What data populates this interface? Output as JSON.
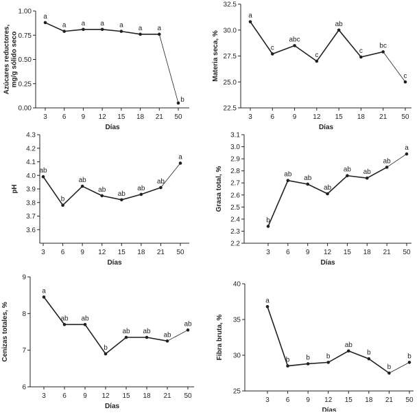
{
  "chart_data": [
    {
      "type": "line",
      "categories": [
        "3",
        "6",
        "9",
        "12",
        "15",
        "18",
        "21",
        "50"
      ],
      "values": [
        0.88,
        0.79,
        0.81,
        0.81,
        0.79,
        0.76,
        0.76,
        0.05
      ],
      "letters": [
        "a",
        "a",
        "a",
        "a",
        "a",
        "a",
        "a",
        "b"
      ],
      "xlabel": "Días",
      "ylabel": [
        "Azúcares reductores,",
        "mg/g sólido seco"
      ],
      "ylim": [
        0,
        1
      ],
      "yticks": [
        0,
        0.25,
        0.5,
        0.75,
        1
      ],
      "ytick_labels": [
        "0.00",
        "0.25",
        "0.50",
        "0.75",
        "1.00"
      ],
      "grid": false,
      "color": "#231f20"
    },
    {
      "type": "line",
      "categories": [
        "3",
        "6",
        "9",
        "12",
        "15",
        "18",
        "21",
        "50"
      ],
      "values": [
        30.8,
        27.7,
        28.5,
        27.0,
        30.0,
        27.4,
        27.9,
        25.0
      ],
      "letters": [
        "a",
        "c",
        "abc",
        "c",
        "ab",
        "c",
        "bc",
        "c"
      ],
      "xlabel": "Días",
      "ylabel": [
        "Materia seca, %"
      ],
      "ylim": [
        22.5,
        32.5
      ],
      "yticks": [
        22.5,
        25,
        27.5,
        30,
        32.5
      ],
      "ytick_labels": [
        "22.5",
        "25.0",
        "27.5",
        "30.0",
        "32.5"
      ],
      "grid": false,
      "color": "#231f20"
    },
    {
      "type": "line",
      "categories": [
        "3",
        "6",
        "9",
        "12",
        "15",
        "18",
        "21",
        "50"
      ],
      "values": [
        3.99,
        3.78,
        3.92,
        3.85,
        3.82,
        3.86,
        3.91,
        4.09
      ],
      "letters": [
        "ab",
        "b",
        "ab",
        "ab",
        "ab",
        "ab",
        "ab",
        "a"
      ],
      "xlabel": "Días",
      "ylabel": [
        "pH"
      ],
      "ylim": [
        3.5,
        4.3
      ],
      "yticks": [
        3.6,
        3.7,
        3.8,
        3.9,
        4.0,
        4.1,
        4.2,
        4.3
      ],
      "ytick_labels": [
        "3.6",
        "3.7",
        "3.8",
        "3.9",
        "4.0",
        "4.1",
        "4.2",
        "4.3"
      ],
      "grid": false,
      "color": "#231f20"
    },
    {
      "type": "line",
      "categories": [
        "3",
        "6",
        "9",
        "12",
        "15",
        "18",
        "21",
        "50"
      ],
      "values": [
        2.34,
        2.72,
        2.69,
        2.61,
        2.76,
        2.74,
        2.83,
        2.94
      ],
      "letters": [
        "b",
        "ab",
        "ab",
        "ab",
        "ab",
        "ab",
        "ab",
        "a"
      ],
      "xlabel": "Días",
      "ylabel": [
        "Grasa total, %"
      ],
      "ylim": [
        2.2,
        3.1
      ],
      "yticks": [
        2.2,
        2.3,
        2.4,
        2.5,
        2.6,
        2.7,
        2.8,
        2.9,
        3.0,
        3.1
      ],
      "ytick_labels": [
        "2.2",
        "2.3",
        "2.4",
        "2.5",
        "2.6",
        "2.7",
        "2.8",
        "2.9",
        "3.0",
        "3.1"
      ],
      "grid": false,
      "color": "#231f20"
    },
    {
      "type": "line",
      "categories": [
        "3",
        "6",
        "9",
        "12",
        "15",
        "18",
        "21",
        "50"
      ],
      "values": [
        8.45,
        7.7,
        7.7,
        6.9,
        7.35,
        7.35,
        7.25,
        7.55
      ],
      "letters": [
        "a",
        "ab",
        "ab",
        "b",
        "ab",
        "ab",
        "ab",
        "ab"
      ],
      "xlabel": "Días",
      "ylabel": [
        "Cenizas totales, %"
      ],
      "ylim": [
        6,
        9
      ],
      "yticks": [
        6,
        7,
        8,
        9
      ],
      "ytick_labels": [
        "6",
        "7",
        "8",
        "9"
      ],
      "grid": false,
      "color": "#231f20"
    },
    {
      "type": "line",
      "categories": [
        "3",
        "6",
        "9",
        "12",
        "15",
        "18",
        "21",
        "50"
      ],
      "values": [
        36.8,
        28.5,
        28.8,
        29.0,
        30.6,
        29.5,
        27.5,
        29.0
      ],
      "letters": [
        "a",
        "b",
        "b",
        "b",
        "ab",
        "b",
        "b",
        "b"
      ],
      "xlabel": "Días",
      "ylabel": [
        "Fibra bruta, %"
      ],
      "ylim": [
        25,
        40
      ],
      "yticks": [
        25,
        30,
        35,
        40
      ],
      "ytick_labels": [
        "25",
        "30",
        "35",
        "40"
      ],
      "grid": false,
      "color": "#231f20"
    }
  ]
}
